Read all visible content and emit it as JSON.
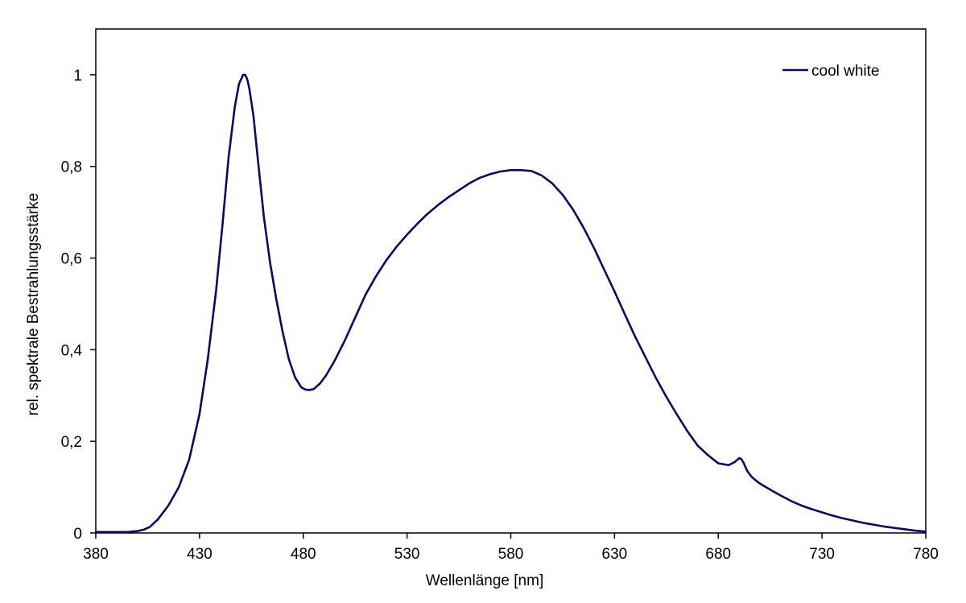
{
  "chart_data": {
    "type": "line",
    "title": "",
    "xlabel": "Wellenlänge [nm]",
    "ylabel": "rel. spektrale Bestrahlungsstärke",
    "xlim": [
      380,
      780
    ],
    "ylim": [
      0,
      1.1
    ],
    "xticks": [
      380,
      430,
      480,
      530,
      580,
      630,
      680,
      730,
      780
    ],
    "yticks": [
      0,
      0.2,
      0.4,
      0.6,
      0.8,
      1
    ],
    "xtick_labels": [
      "380",
      "430",
      "480",
      "530",
      "580",
      "630",
      "680",
      "730",
      "780"
    ],
    "ytick_labels": [
      "0",
      "0,2",
      "0,4",
      "0,6",
      "0,8",
      "1"
    ],
    "grid": false,
    "legend": {
      "position": "top-right"
    },
    "colors": {
      "series": "#0a0a5a",
      "axis": "#000000"
    },
    "series": [
      {
        "name": "cool white",
        "x": [
          380,
          385,
          390,
          395,
          400,
          403,
          406,
          410,
          415,
          420,
          425,
          430,
          434,
          438,
          441,
          444,
          447,
          449,
          451,
          452,
          453,
          454,
          456,
          458,
          461,
          464,
          467,
          470,
          473,
          476,
          479,
          481,
          483,
          485,
          488,
          491,
          495,
          500,
          505,
          510,
          515,
          520,
          525,
          530,
          535,
          540,
          545,
          550,
          555,
          560,
          565,
          570,
          575,
          580,
          585,
          590,
          595,
          600,
          605,
          610,
          615,
          620,
          625,
          630,
          635,
          640,
          645,
          650,
          655,
          660,
          665,
          670,
          675,
          680,
          685,
          688,
          690,
          691,
          692,
          693,
          694,
          696,
          698,
          700,
          703,
          706,
          710,
          715,
          720,
          725,
          730,
          735,
          740,
          745,
          750,
          755,
          760,
          765,
          770,
          775,
          780
        ],
        "values": [
          0.002,
          0.002,
          0.002,
          0.002,
          0.004,
          0.007,
          0.013,
          0.03,
          0.06,
          0.1,
          0.16,
          0.26,
          0.38,
          0.53,
          0.67,
          0.82,
          0.93,
          0.98,
          1.0,
          1.0,
          0.99,
          0.97,
          0.91,
          0.82,
          0.69,
          0.59,
          0.51,
          0.44,
          0.38,
          0.34,
          0.318,
          0.313,
          0.312,
          0.314,
          0.326,
          0.344,
          0.375,
          0.42,
          0.47,
          0.52,
          0.56,
          0.595,
          0.625,
          0.651,
          0.675,
          0.697,
          0.716,
          0.733,
          0.748,
          0.763,
          0.775,
          0.783,
          0.789,
          0.792,
          0.792,
          0.79,
          0.78,
          0.763,
          0.738,
          0.706,
          0.667,
          0.623,
          0.575,
          0.527,
          0.477,
          0.428,
          0.383,
          0.338,
          0.297,
          0.259,
          0.223,
          0.191,
          0.17,
          0.152,
          0.148,
          0.155,
          0.163,
          0.162,
          0.155,
          0.145,
          0.135,
          0.123,
          0.115,
          0.108,
          0.1,
          0.092,
          0.082,
          0.07,
          0.06,
          0.052,
          0.045,
          0.038,
          0.032,
          0.027,
          0.022,
          0.018,
          0.014,
          0.011,
          0.008,
          0.005,
          0.003
        ]
      }
    ]
  }
}
